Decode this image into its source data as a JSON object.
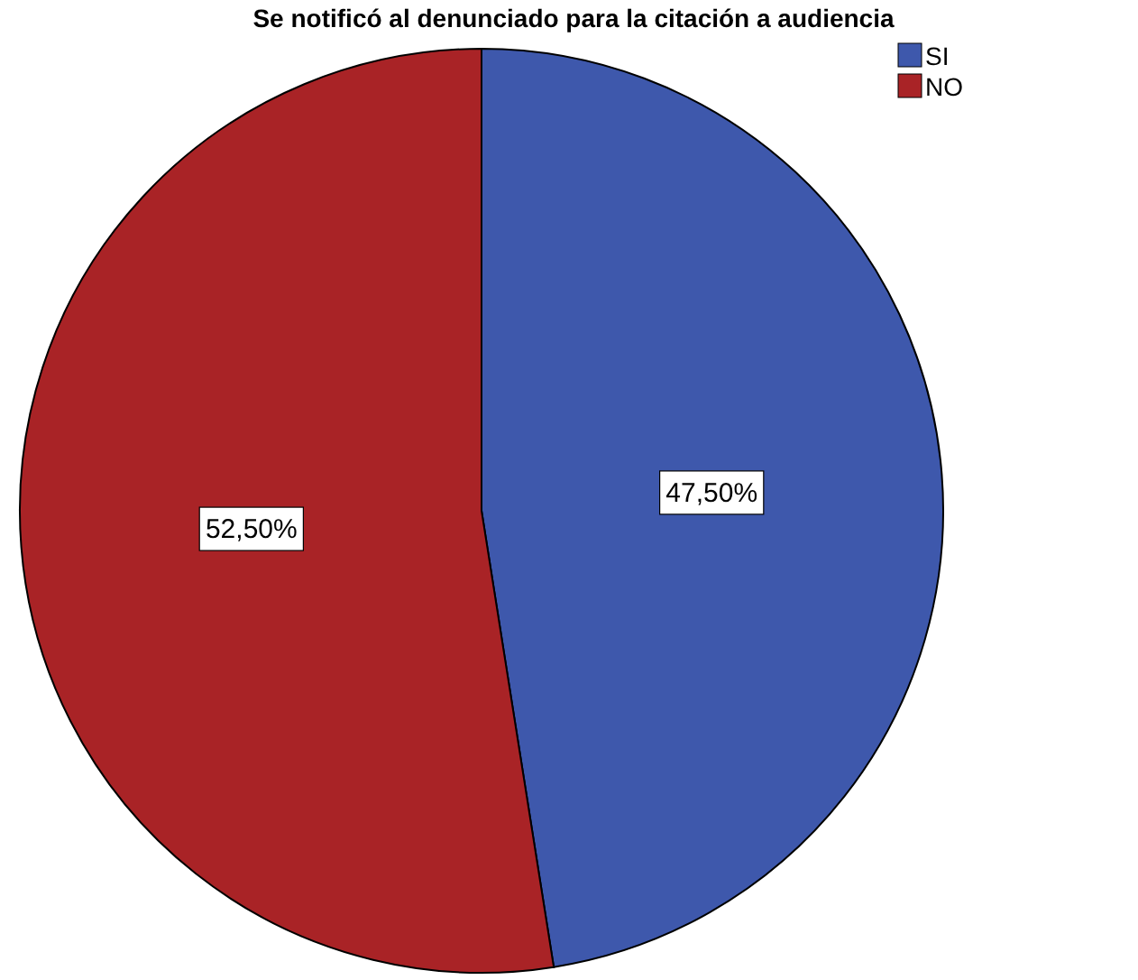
{
  "chart_data": {
    "type": "pie",
    "title": "Se notificó al denunciado para la citación a audiencia",
    "categories": [
      "SI",
      "NO"
    ],
    "values": [
      47.5,
      52.5
    ],
    "colors": [
      "#3e58ac",
      "#a92326"
    ],
    "value_labels": [
      "47,50%",
      "52,50%"
    ],
    "legend": "top right"
  }
}
